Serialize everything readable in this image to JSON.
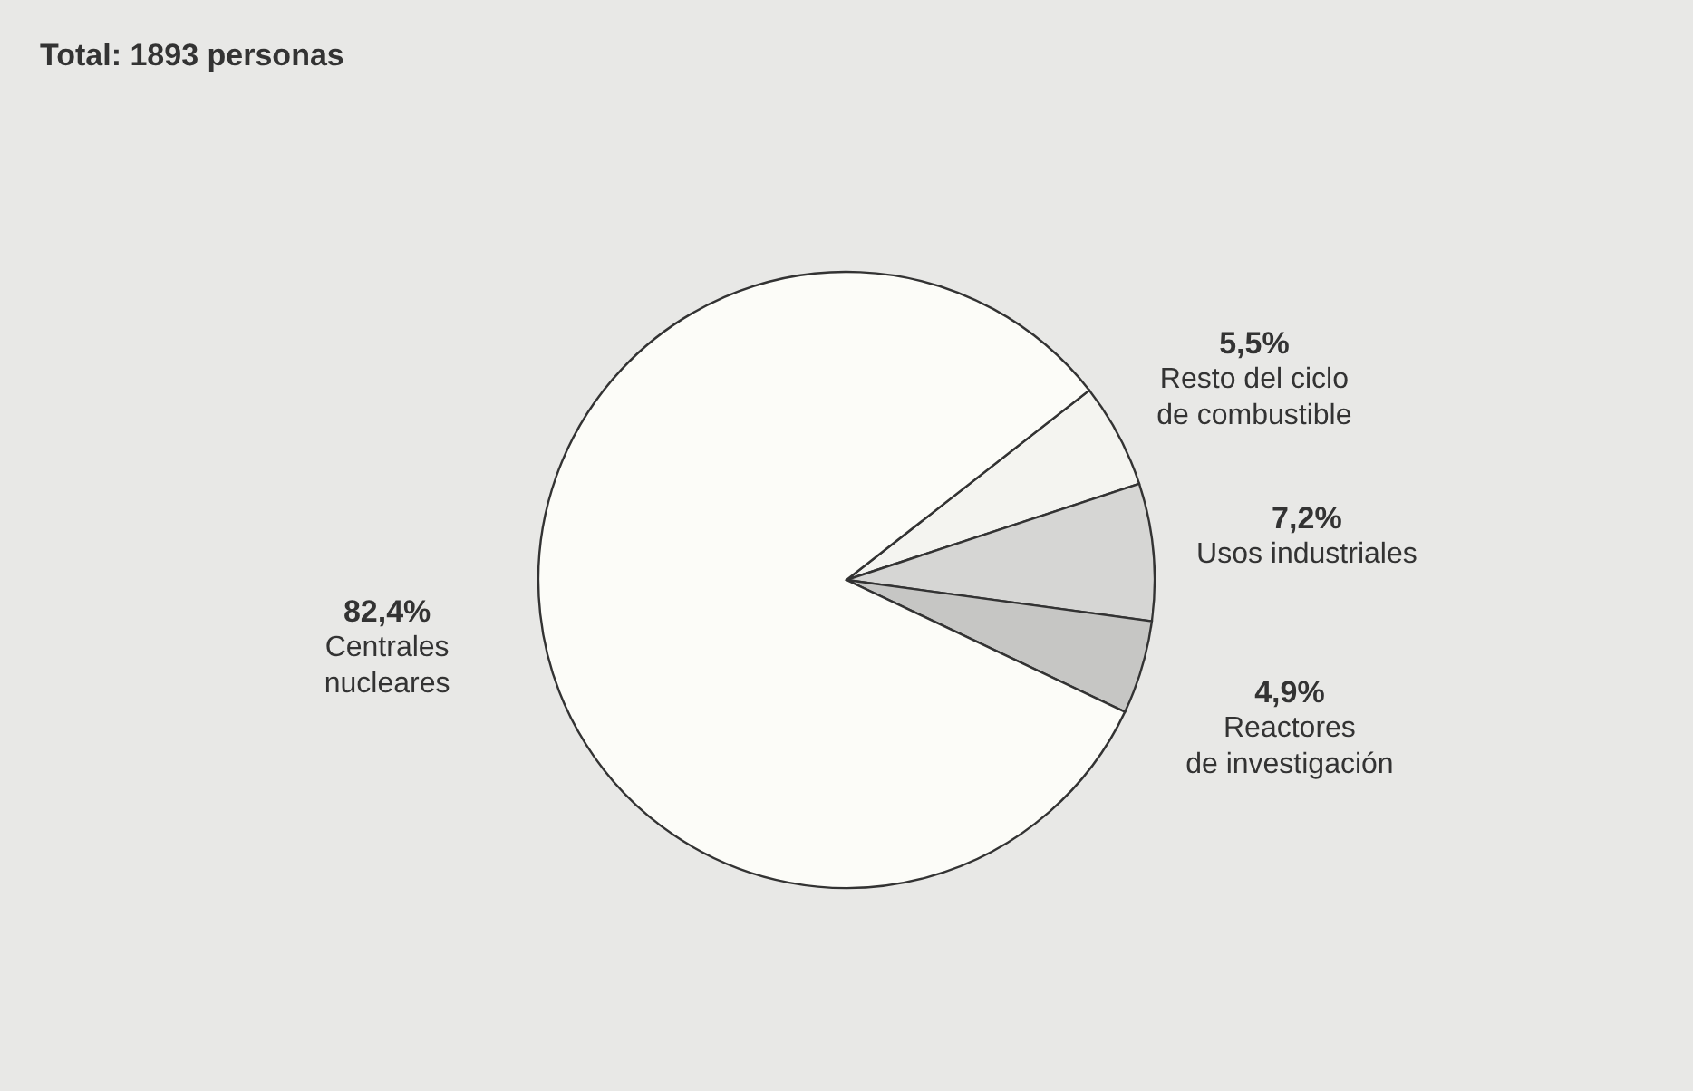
{
  "chart_data": {
    "type": "pie",
    "title": "Total: 1893 personas",
    "categories": [
      "Resto del ciclo\nde combustible",
      "Usos industriales",
      "Reactores\nde investigación",
      "Centrales\nnucleares"
    ],
    "values": [
      5.5,
      7.2,
      4.9,
      82.4
    ],
    "value_labels": [
      "5,5%",
      "7,2%",
      "4,9%",
      "82,4%"
    ],
    "colors": [
      "#f4f4f0",
      "#d6d6d4",
      "#c6c6c4",
      "#fcfcf8"
    ]
  }
}
